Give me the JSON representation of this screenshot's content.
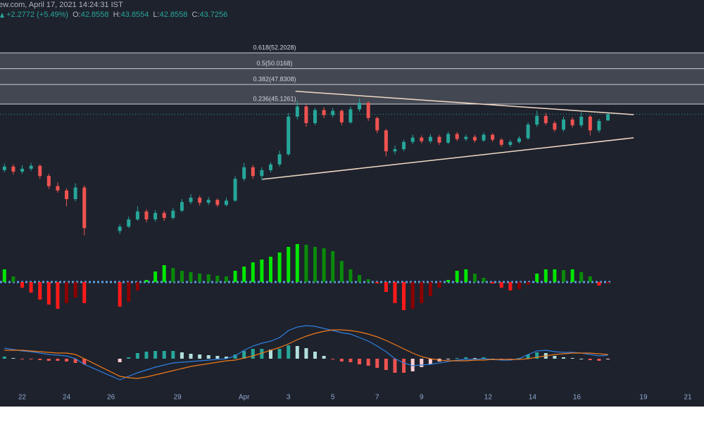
{
  "header": {
    "source": "ew.com, April 17, 2021 14:24:31 IST",
    "change": "+2.2772 (+5.49%)",
    "ohlc_labels": [
      "O:",
      "H:",
      "L:",
      "C:"
    ]
  },
  "chart_data": {
    "type": "candlestick",
    "x": [
      0.2,
      0.6,
      1.0,
      1.4,
      1.8,
      2.2,
      2.6,
      3.0,
      3.4,
      3.8,
      5.4,
      5.8,
      6.2,
      6.6,
      7.0,
      7.4,
      7.8,
      8.2,
      8.6,
      9.0,
      9.4,
      9.8,
      10.2,
      10.6,
      11.0,
      11.4,
      11.8,
      12.2,
      12.6,
      13.0,
      13.4,
      13.8,
      14.2,
      14.6,
      15.0,
      15.4,
      15.8,
      16.2,
      16.6,
      17.0,
      17.4,
      17.8,
      18.2,
      18.6,
      19.0,
      19.4,
      19.8,
      20.2,
      20.6,
      21.0,
      21.4,
      21.8,
      22.2,
      22.6,
      23.0,
      23.4,
      23.8,
      24.2,
      24.6,
      25.0,
      25.4,
      25.8,
      26.2,
      26.6,
      27.0,
      27.4
    ],
    "open": [
      36.0,
      36.5,
      35.8,
      36.2,
      36.6,
      35.2,
      33.8,
      33.2,
      32.0,
      33.6,
      27.6,
      28.2,
      29.2,
      30.3,
      29.2,
      30.1,
      29.4,
      30.4,
      31.6,
      32.2,
      31.5,
      31.9,
      31.2,
      31.8,
      34.8,
      36.4,
      35.2,
      36.0,
      36.8,
      38.2,
      43.4,
      44.8,
      42.5,
      44.3,
      43.6,
      44.2,
      42.6,
      44.4,
      45.3,
      43.2,
      41.5,
      38.6,
      38.9,
      39.9,
      40.5,
      40.0,
      40.6,
      39.8,
      41.0,
      40.3,
      40.6,
      40.1,
      40.9,
      40.2,
      39.5,
      39.9,
      40.4,
      42.3,
      43.5,
      42.5,
      41.6,
      43.0,
      42.2,
      43.4,
      41.5,
      42.8558
    ],
    "high": [
      36.9,
      36.8,
      36.7,
      37.0,
      36.8,
      35.5,
      34.3,
      33.5,
      34.2,
      33.9,
      28.5,
      29.6,
      31.0,
      30.6,
      30.5,
      30.4,
      30.8,
      32.0,
      32.7,
      32.5,
      32.3,
      32.1,
      32.2,
      35.2,
      37.0,
      36.7,
      36.4,
      37.1,
      38.7,
      43.9,
      45.6,
      45.0,
      44.6,
      44.7,
      44.6,
      44.4,
      44.8,
      45.9,
      45.5,
      43.4,
      41.7,
      39.4,
      40.2,
      40.9,
      40.8,
      41.0,
      40.9,
      41.3,
      41.3,
      40.9,
      40.9,
      41.2,
      41.1,
      40.4,
      40.2,
      40.7,
      42.6,
      44.2,
      43.9,
      42.8,
      43.4,
      43.3,
      44.0,
      43.6,
      43.1,
      43.8554
    ],
    "low": [
      35.7,
      35.4,
      35.5,
      35.9,
      34.8,
      33.4,
      32.9,
      31.0,
      31.7,
      27.0,
      27.2,
      28.0,
      29.0,
      28.8,
      28.9,
      29.0,
      29.2,
      30.2,
      31.3,
      31.1,
      31.2,
      30.9,
      31.0,
      31.6,
      34.5,
      34.8,
      34.6,
      35.7,
      36.5,
      38.0,
      43.0,
      42.0,
      42.2,
      43.2,
      43.3,
      42.2,
      42.4,
      44.1,
      42.8,
      41.1,
      37.9,
      38.2,
      38.6,
      39.6,
      39.7,
      39.7,
      39.5,
      39.6,
      40.0,
      40.0,
      39.8,
      39.9,
      39.9,
      39.2,
      39.2,
      39.7,
      40.2,
      42.0,
      42.2,
      41.3,
      41.3,
      41.9,
      41.9,
      40.8,
      41.2,
      42.8558
    ],
    "close": [
      36.5,
      35.8,
      36.2,
      36.6,
      35.2,
      33.8,
      33.2,
      32.0,
      33.6,
      28.0,
      28.2,
      29.2,
      30.3,
      29.2,
      30.1,
      29.4,
      30.4,
      31.6,
      32.2,
      31.5,
      31.9,
      31.2,
      31.8,
      34.8,
      36.4,
      35.2,
      36.0,
      36.8,
      38.2,
      43.4,
      44.8,
      42.5,
      44.3,
      43.6,
      44.2,
      42.6,
      44.4,
      45.3,
      43.2,
      41.5,
      38.6,
      38.9,
      39.9,
      40.5,
      40.0,
      40.6,
      39.8,
      41.0,
      40.3,
      40.6,
      40.1,
      40.9,
      40.2,
      39.5,
      39.9,
      40.4,
      42.3,
      43.5,
      42.5,
      41.6,
      43.0,
      42.2,
      43.4,
      41.5,
      42.8,
      43.7256
    ],
    "up_color": "#26a69a",
    "down_color": "#ef5350",
    "xlim": [
      0,
      31.73
    ],
    "xticks": [
      {
        "value": 1,
        "label": "22"
      },
      {
        "value": 3,
        "label": "24"
      },
      {
        "value": 5,
        "label": "26"
      },
      {
        "value": 8,
        "label": "29"
      },
      {
        "value": 11,
        "label": "Apr"
      },
      {
        "value": 13,
        "label": "3"
      },
      {
        "value": 15,
        "label": "5"
      },
      {
        "value": 17,
        "label": "7"
      },
      {
        "value": 19,
        "label": "9"
      },
      {
        "value": 22,
        "label": "12"
      },
      {
        "value": 24,
        "label": "14"
      },
      {
        "value": 26,
        "label": "16"
      },
      {
        "value": 29,
        "label": "19"
      },
      {
        "value": 31,
        "label": "21"
      }
    ],
    "ylim": [
      25.7,
      59.5
    ],
    "fib_levels": [
      {
        "value": 52.2028,
        "label": "0.618(52.2028)"
      },
      {
        "value": 50.0168,
        "label": "0.5(50.0168)"
      },
      {
        "value": 47.8308,
        "label": "0.382(47.8308)"
      },
      {
        "value": 45.1261,
        "label": "0.236(45.1261)"
      }
    ],
    "trendlines": [
      {
        "x": [
          13.32,
          28.56
        ],
        "y": [
          46.9,
          43.67
        ]
      },
      {
        "x": [
          11.83,
          28.56
        ],
        "y": [
          34.74,
          40.47
        ]
      }
    ],
    "trendline_color": "#f3d9c6",
    "momentum": {
      "ylim": [
        -49,
        56
      ],
      "colors": {
        "up_rising": "#00e600",
        "up_falling": "#0a8a0a",
        "down_falling": "#ff1a1a",
        "down_rising": "#8b0000"
      },
      "values": [
        18,
        8,
        -8,
        -15,
        -25,
        -32,
        -38,
        -30,
        -22,
        -30,
        -35,
        -28,
        -12,
        3,
        15,
        24,
        20,
        16,
        14,
        12,
        11,
        9,
        8,
        16,
        22,
        28,
        32,
        36,
        42,
        50,
        54,
        53,
        50,
        48,
        44,
        30,
        18,
        10,
        4,
        -2,
        -14,
        -30,
        -40,
        -38,
        -30,
        -20,
        -8,
        3,
        16,
        18,
        12,
        6,
        -2,
        -8,
        -12,
        -10,
        -4,
        12,
        18,
        18,
        17,
        18,
        14,
        8,
        -5,
        -2
      ]
    },
    "macd": {
      "ylim": [
        -50,
        55
      ],
      "macd_color": "#2f7fe0",
      "signal_color": "#f07a1a",
      "hist_colors": {
        "up_rising": "#26a69a",
        "up_falling": "#b2dfdb",
        "down_falling": "#ef5350",
        "down_rising": "#ffcdd2"
      },
      "macd": [
        15,
        13,
        11,
        10,
        8,
        6,
        5,
        4,
        0,
        -8,
        -30,
        -25,
        -20,
        -16,
        -12,
        -9,
        -6,
        -5,
        -4,
        -3,
        -2,
        -1,
        0,
        4,
        12,
        18,
        22,
        25,
        30,
        40,
        45,
        47,
        46,
        43,
        40,
        37,
        35,
        30,
        25,
        18,
        10,
        0,
        -6,
        -10,
        -9,
        -8,
        -6,
        -4,
        -2,
        -1,
        -1,
        0,
        -1,
        -2,
        -2,
        0,
        6,
        11,
        12,
        10,
        9,
        9,
        8,
        6,
        4,
        5
      ],
      "signal": [
        12,
        12,
        12,
        11,
        10,
        9,
        8,
        8,
        6,
        0,
        -25,
        -27,
        -28,
        -26,
        -23,
        -20,
        -17,
        -14,
        -11,
        -9,
        -7,
        -5,
        -3,
        -2,
        1,
        4,
        8,
        12,
        16,
        21,
        27,
        32,
        36,
        39,
        41,
        41,
        40,
        38,
        35,
        31,
        26,
        20,
        14,
        8,
        3,
        0,
        -2,
        -3,
        -3,
        -3,
        -2,
        -2,
        -1,
        -1,
        -1,
        -1,
        0,
        2,
        4,
        6,
        7,
        8,
        8,
        8,
        7,
        6
      ],
      "histogram": [
        3,
        1,
        -1,
        -1,
        -2,
        -3,
        -3,
        -4,
        -6,
        -8,
        -5,
        2,
        8,
        10,
        11,
        11,
        11,
        9,
        7,
        6,
        5,
        4,
        3,
        6,
        11,
        14,
        14,
        13,
        14,
        19,
        18,
        15,
        10,
        4,
        -1,
        -4,
        -5,
        -8,
        -10,
        -13,
        -16,
        -20,
        -20,
        -18,
        -12,
        -8,
        -4,
        -1,
        1,
        2,
        1,
        2,
        0,
        -1,
        -1,
        1,
        6,
        9,
        8,
        4,
        2,
        1,
        0,
        -2,
        -3,
        -1
      ]
    }
  }
}
